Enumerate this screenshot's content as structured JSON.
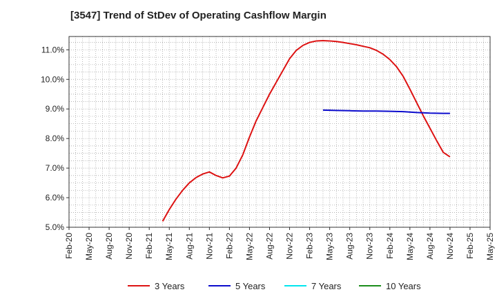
{
  "chart_data": {
    "type": "line",
    "title": "[3547]  Trend of StDev of Operating Cashflow Margin",
    "xlabel": "",
    "ylabel": "",
    "x_ticks": [
      "Feb-20",
      "May-20",
      "Aug-20",
      "Nov-20",
      "Feb-21",
      "May-21",
      "Aug-21",
      "Nov-21",
      "Feb-22",
      "May-22",
      "Aug-22",
      "Nov-22",
      "Feb-23",
      "May-23",
      "Aug-23",
      "Nov-23",
      "Feb-24",
      "May-24",
      "Aug-24",
      "Nov-24",
      "Feb-25",
      "May-25"
    ],
    "y_ticks": [
      5.0,
      6.0,
      7.0,
      8.0,
      9.0,
      10.0,
      11.0
    ],
    "y_tick_labels": [
      "5.0%",
      "6.0%",
      "7.0%",
      "8.0%",
      "9.0%",
      "10.0%",
      "11.0%"
    ],
    "ylim": [
      5.0,
      11.45
    ],
    "xlim_months": [
      "Feb-20",
      "May-25"
    ],
    "grid": true,
    "legend_position": "bottom",
    "series": [
      {
        "name": "3 Years",
        "color": "#dd1111",
        "points": [
          [
            "Apr-21",
            5.2
          ],
          [
            "May-21",
            5.6
          ],
          [
            "Jun-21",
            5.95
          ],
          [
            "Jul-21",
            6.25
          ],
          [
            "Aug-21",
            6.5
          ],
          [
            "Sep-21",
            6.68
          ],
          [
            "Oct-21",
            6.8
          ],
          [
            "Nov-21",
            6.87
          ],
          [
            "Dec-21",
            6.75
          ],
          [
            "Jan-22",
            6.67
          ],
          [
            "Feb-22",
            6.73
          ],
          [
            "Mar-22",
            7.0
          ],
          [
            "Apr-22",
            7.45
          ],
          [
            "May-22",
            8.05
          ],
          [
            "Jun-22",
            8.6
          ],
          [
            "Jul-22",
            9.05
          ],
          [
            "Aug-22",
            9.5
          ],
          [
            "Sep-22",
            9.9
          ],
          [
            "Oct-22",
            10.3
          ],
          [
            "Nov-22",
            10.7
          ],
          [
            "Dec-22",
            10.98
          ],
          [
            "Jan-23",
            11.15
          ],
          [
            "Feb-23",
            11.25
          ],
          [
            "Mar-23",
            11.3
          ],
          [
            "Apr-23",
            11.31
          ],
          [
            "May-23",
            11.3
          ],
          [
            "Jun-23",
            11.28
          ],
          [
            "Jul-23",
            11.25
          ],
          [
            "Aug-23",
            11.21
          ],
          [
            "Sep-23",
            11.17
          ],
          [
            "Oct-23",
            11.12
          ],
          [
            "Nov-23",
            11.07
          ],
          [
            "Dec-23",
            10.98
          ],
          [
            "Jan-24",
            10.85
          ],
          [
            "Feb-24",
            10.67
          ],
          [
            "Mar-24",
            10.43
          ],
          [
            "Apr-24",
            10.1
          ],
          [
            "May-24",
            9.67
          ],
          [
            "Jun-24",
            9.22
          ],
          [
            "Jul-24",
            8.77
          ],
          [
            "Aug-24",
            8.35
          ],
          [
            "Sep-24",
            7.93
          ],
          [
            "Oct-24",
            7.53
          ],
          [
            "Nov-24",
            7.38
          ]
        ]
      },
      {
        "name": "5 Years",
        "color": "#0a0acc",
        "points": [
          [
            "Apr-23",
            8.96
          ],
          [
            "Jun-23",
            8.95
          ],
          [
            "Aug-23",
            8.94
          ],
          [
            "Oct-23",
            8.93
          ],
          [
            "Dec-23",
            8.93
          ],
          [
            "Feb-24",
            8.92
          ],
          [
            "Apr-24",
            8.91
          ],
          [
            "Jun-24",
            8.88
          ],
          [
            "Aug-24",
            8.86
          ],
          [
            "Oct-24",
            8.85
          ],
          [
            "Nov-24",
            8.85
          ]
        ]
      },
      {
        "name": "7 Years",
        "color": "#00e5ee",
        "points": []
      },
      {
        "name": "10 Years",
        "color": "#1a8c1a",
        "points": []
      }
    ]
  }
}
